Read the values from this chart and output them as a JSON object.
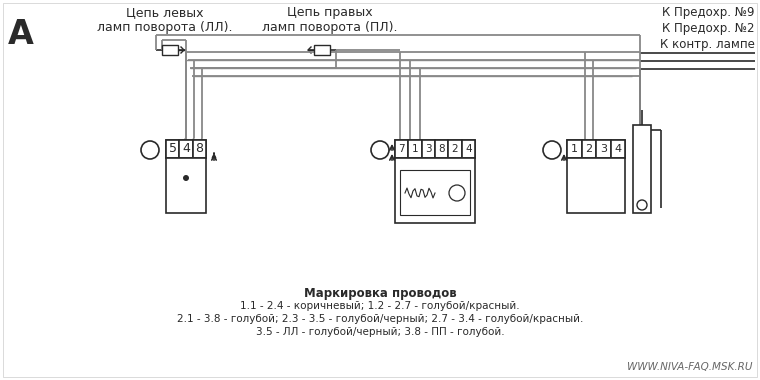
{
  "title_letter": "A",
  "bg_color": "#ffffff",
  "fg_color": "#2a2a2a",
  "wire_color": "#888888",
  "label_left": "Цепь левых\nламп поворота (ЛЛ).",
  "label_center": "Цепь правых\nламп поворота (ПЛ).",
  "label_right1": "К Предохр. №9",
  "label_right2": "К Предохр. №2",
  "label_right3": "К контр. лампе",
  "connector1_pins": [
    "1",
    "2",
    "3",
    "4"
  ],
  "connector2_pins": [
    "7",
    "1",
    "3",
    "8",
    "2",
    "4"
  ],
  "connector3_pins": [
    "5",
    "4",
    "8"
  ],
  "marking_title": "Маркировка проводов",
  "marking_lines": [
    "1.1 - 2.4 - коричневый; 1.2 - 2.7 - голубой/красный.",
    "2.1 - 3.8 - голубой; 2.3 - 3.5 - голубой/черный; 2.7 - 3.4 - голубой/красный.",
    "3.5 - ЛЛ - голубой/черный; 3.8 - ПП - голубой."
  ],
  "website": "WWW.NIVA-FAQ.MSK.RU"
}
